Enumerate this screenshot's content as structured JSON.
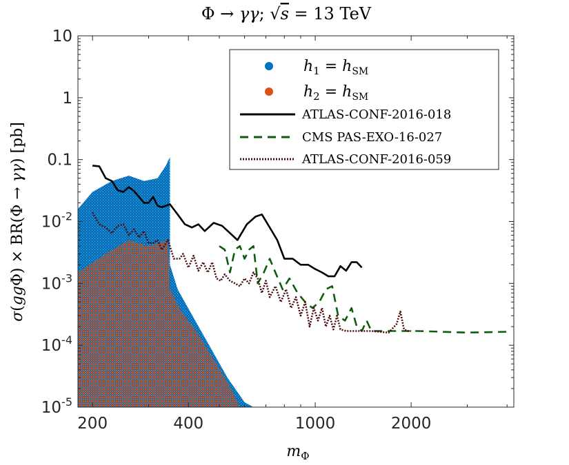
{
  "chart_data": {
    "type": "scatter",
    "title": "Φ → γγ; √s = 13 TeV",
    "xlabel": "m_Φ",
    "ylabel": "σ(ggΦ) × BR(Φ → γγ) [pb]",
    "xscale": "log",
    "yscale": "log",
    "xlim": [
      180,
      4200
    ],
    "ylim": [
      1e-05,
      10
    ],
    "xticks": [
      {
        "value": 200,
        "label": "200"
      },
      {
        "value": 400,
        "label": "400"
      },
      {
        "value": 1000,
        "label": "1000"
      },
      {
        "value": 2000,
        "label": "2000"
      }
    ],
    "yticks": [
      {
        "value": 10,
        "label": "10"
      },
      {
        "value": 1,
        "label": "1"
      },
      {
        "value": 0.1,
        "label": "0.1"
      },
      {
        "value": 0.01,
        "label": "10^-2"
      },
      {
        "value": 0.001,
        "label": "10^-3"
      },
      {
        "value": 0.0001,
        "label": "10^-4"
      },
      {
        "value": 1e-05,
        "label": "10^-5"
      }
    ],
    "grid": false,
    "legend_position": "top-right",
    "scatter_series": [
      {
        "name": "h_1 = h_SM",
        "color": "#0072BD",
        "region_points": [
          [
            180,
            0.016
          ],
          [
            200,
            0.03
          ],
          [
            230,
            0.045
          ],
          [
            260,
            0.055
          ],
          [
            290,
            0.045
          ],
          [
            320,
            0.05
          ],
          [
            340,
            0.08
          ],
          [
            350,
            0.11
          ],
          [
            350,
            0.002
          ],
          [
            370,
            0.0008
          ],
          [
            420,
            0.00025
          ],
          [
            470,
            9e-05
          ],
          [
            530,
            3e-05
          ],
          [
            600,
            1.2e-05
          ],
          [
            640,
            1e-05
          ],
          [
            180,
            1e-05
          ]
        ]
      },
      {
        "name": "h_2 = h_SM",
        "color": "#D95319",
        "region_points": [
          [
            180,
            0.0015
          ],
          [
            220,
            0.003
          ],
          [
            260,
            0.005
          ],
          [
            300,
            0.004
          ],
          [
            345,
            0.005
          ],
          [
            350,
            0.0008
          ],
          [
            380,
            0.00035
          ],
          [
            420,
            0.00018
          ],
          [
            470,
            7e-05
          ],
          [
            520,
            3e-05
          ],
          [
            560,
            1.5e-05
          ],
          [
            580,
            1e-05
          ],
          [
            180,
            1e-05
          ]
        ]
      }
    ],
    "line_series": [
      {
        "name": "ATLAS-CONF-2016-018",
        "color": "#000000",
        "style": "solid",
        "points": [
          [
            200,
            0.08
          ],
          [
            210,
            0.078
          ],
          [
            220,
            0.05
          ],
          [
            230,
            0.045
          ],
          [
            240,
            0.032
          ],
          [
            250,
            0.03
          ],
          [
            260,
            0.036
          ],
          [
            270,
            0.031
          ],
          [
            280,
            0.025
          ],
          [
            290,
            0.02
          ],
          [
            300,
            0.02
          ],
          [
            310,
            0.025
          ],
          [
            320,
            0.018
          ],
          [
            330,
            0.017
          ],
          [
            350,
            0.019
          ],
          [
            370,
            0.013
          ],
          [
            390,
            0.009
          ],
          [
            410,
            0.008
          ],
          [
            430,
            0.009
          ],
          [
            450,
            0.007
          ],
          [
            480,
            0.0095
          ],
          [
            510,
            0.0085
          ],
          [
            540,
            0.0065
          ],
          [
            570,
            0.005
          ],
          [
            610,
            0.009
          ],
          [
            650,
            0.012
          ],
          [
            680,
            0.013
          ],
          [
            710,
            0.009
          ],
          [
            760,
            0.005
          ],
          [
            800,
            0.0025
          ],
          [
            850,
            0.0025
          ],
          [
            900,
            0.002
          ],
          [
            950,
            0.002
          ],
          [
            1000,
            0.0017
          ],
          [
            1050,
            0.0015
          ],
          [
            1100,
            0.0013
          ],
          [
            1150,
            0.0013
          ],
          [
            1200,
            0.0019
          ],
          [
            1250,
            0.0016
          ],
          [
            1300,
            0.0022
          ],
          [
            1350,
            0.0022
          ],
          [
            1400,
            0.0018
          ]
        ]
      },
      {
        "name": "CMS PAS-EXO-16-027",
        "color": "#0B5D0B",
        "style": "dashed",
        "points": [
          [
            500,
            0.004
          ],
          [
            520,
            0.0035
          ],
          [
            540,
            0.0015
          ],
          [
            560,
            0.0035
          ],
          [
            580,
            0.004
          ],
          [
            600,
            0.0025
          ],
          [
            620,
            0.0035
          ],
          [
            640,
            0.004
          ],
          [
            660,
            0.001
          ],
          [
            690,
            0.0015
          ],
          [
            720,
            0.0025
          ],
          [
            750,
            0.0015
          ],
          [
            790,
            0.0008
          ],
          [
            830,
            0.0012
          ],
          [
            880,
            0.0007
          ],
          [
            930,
            0.0005
          ],
          [
            980,
            0.0004
          ],
          [
            1030,
            0.0005
          ],
          [
            1080,
            0.0008
          ],
          [
            1130,
            0.0009
          ],
          [
            1180,
            0.0003
          ],
          [
            1240,
            0.00025
          ],
          [
            1300,
            0.0004
          ],
          [
            1350,
            0.0002
          ],
          [
            1400,
            0.00017
          ],
          [
            1450,
            0.00025
          ],
          [
            1500,
            0.00017
          ],
          [
            1600,
            0.00017
          ],
          [
            1700,
            0.00017
          ],
          [
            1900,
            0.00017
          ],
          [
            2100,
            0.00017
          ],
          [
            2500,
            0.000165
          ],
          [
            3000,
            0.00016
          ],
          [
            4000,
            0.000165
          ]
        ]
      },
      {
        "name": "ATLAS-CONF-2016-059",
        "color": "#4A0C0C",
        "style": "dotted",
        "points": [
          [
            200,
            0.014
          ],
          [
            210,
            0.009
          ],
          [
            220,
            0.008
          ],
          [
            230,
            0.0065
          ],
          [
            240,
            0.0085
          ],
          [
            250,
            0.009
          ],
          [
            260,
            0.006
          ],
          [
            270,
            0.0075
          ],
          [
            280,
            0.0055
          ],
          [
            290,
            0.007
          ],
          [
            300,
            0.0045
          ],
          [
            310,
            0.0045
          ],
          [
            320,
            0.005
          ],
          [
            330,
            0.0035
          ],
          [
            345,
            0.005
          ],
          [
            360,
            0.0025
          ],
          [
            375,
            0.0025
          ],
          [
            385,
            0.003
          ],
          [
            400,
            0.0018
          ],
          [
            415,
            0.0028
          ],
          [
            430,
            0.0016
          ],
          [
            445,
            0.0022
          ],
          [
            460,
            0.0015
          ],
          [
            475,
            0.0022
          ],
          [
            490,
            0.0012
          ],
          [
            505,
            0.0011
          ],
          [
            520,
            0.0014
          ],
          [
            540,
            0.0011
          ],
          [
            560,
            0.001
          ],
          [
            580,
            0.0009
          ],
          [
            600,
            0.0012
          ],
          [
            620,
            0.001
          ],
          [
            640,
            0.0015
          ],
          [
            660,
            0.0012
          ],
          [
            680,
            0.0007
          ],
          [
            700,
            0.0011
          ],
          [
            720,
            0.0006
          ],
          [
            750,
            0.0009
          ],
          [
            780,
            0.0005
          ],
          [
            810,
            0.0008
          ],
          [
            840,
            0.0004
          ],
          [
            870,
            0.0006
          ],
          [
            900,
            0.0003
          ],
          [
            930,
            0.0005
          ],
          [
            960,
            0.0002
          ],
          [
            990,
            0.0004
          ],
          [
            1020,
            0.00025
          ],
          [
            1050,
            0.0004
          ],
          [
            1080,
            0.0002
          ],
          [
            1110,
            0.0003
          ],
          [
            1140,
            0.00018
          ],
          [
            1170,
            0.0003
          ],
          [
            1200,
            0.00018
          ],
          [
            1250,
            0.00017
          ],
          [
            1300,
            0.00017
          ],
          [
            1500,
            0.00017
          ],
          [
            1700,
            0.00016
          ],
          [
            1800,
            0.00022
          ],
          [
            1850,
            0.00035
          ],
          [
            1900,
            0.00018
          ],
          [
            1950,
            0.00017
          ],
          [
            2000,
            0.00017
          ]
        ]
      }
    ]
  }
}
